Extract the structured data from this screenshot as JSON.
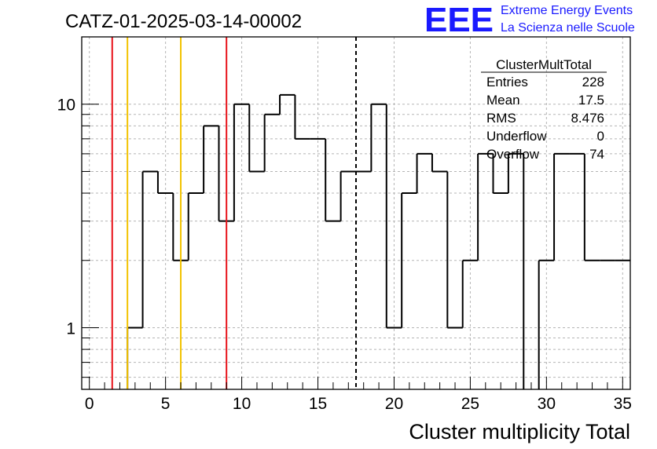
{
  "title": "CATZ-01-2025-03-14-00002",
  "logo": {
    "mark": "EEE",
    "line1": "Extreme Energy Events",
    "line2": "La Scienza nelle Scuole"
  },
  "stats": {
    "name": "ClusterMultTotal",
    "rows": [
      {
        "label": "Entries",
        "value": "228"
      },
      {
        "label": "Mean",
        "value": "17.5"
      },
      {
        "label": "RMS",
        "value": "8.476"
      },
      {
        "label": "Underflow",
        "value": "0"
      },
      {
        "label": "Overflow",
        "value": "74"
      }
    ]
  },
  "chart_data": {
    "type": "histogram",
    "xlabel": "Cluster multiplicity Total",
    "ylabel": "",
    "xlim": [
      -0.5,
      35.5
    ],
    "ylim": [
      0.53,
      20
    ],
    "yscale": "log",
    "grid": true,
    "x_ticks": [
      0,
      5,
      10,
      15,
      20,
      25,
      30,
      35
    ],
    "y_ticks": [
      1,
      10
    ],
    "bin_width": 1,
    "bin_low_edges": [
      2.5,
      3.5,
      4.5,
      5.5,
      6.5,
      7.5,
      8.5,
      9.5,
      10.5,
      11.5,
      12.5,
      13.5,
      14.5,
      15.5,
      16.5,
      17.5,
      18.5,
      19.5,
      20.5,
      21.5,
      22.5,
      23.5,
      24.5,
      25.5,
      26.5,
      27.5,
      28.5,
      29.5,
      30.5,
      31.5,
      32.5,
      33.5,
      34.5
    ],
    "counts": [
      1,
      5,
      4,
      2,
      4,
      8,
      3,
      10,
      5,
      9,
      11,
      7,
      7,
      3,
      5,
      5,
      10,
      1,
      4,
      6,
      5,
      1,
      2,
      6,
      4,
      6,
      0,
      2,
      6,
      6,
      2,
      2,
      2
    ],
    "vertical_lines": [
      {
        "x": 1.5,
        "color": "#e8121a",
        "style": "solid"
      },
      {
        "x": 2.5,
        "color": "#f2c200",
        "style": "solid"
      },
      {
        "x": 6.0,
        "color": "#f2c200",
        "style": "solid"
      },
      {
        "x": 9.0,
        "color": "#e8121a",
        "style": "solid"
      },
      {
        "x": 17.5,
        "color": "#000000",
        "style": "dashed"
      }
    ]
  }
}
